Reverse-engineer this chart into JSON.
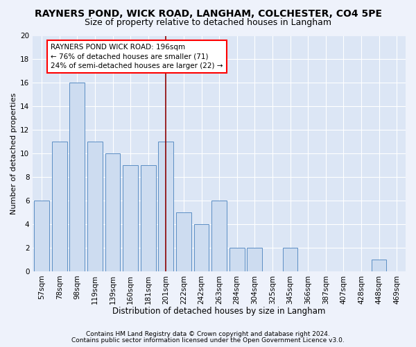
{
  "title": "RAYNERS POND, WICK ROAD, LANGHAM, COLCHESTER, CO4 5PE",
  "subtitle": "Size of property relative to detached houses in Langham",
  "xlabel": "Distribution of detached houses by size in Langham",
  "ylabel": "Number of detached properties",
  "categories": [
    "57sqm",
    "78sqm",
    "98sqm",
    "119sqm",
    "139sqm",
    "160sqm",
    "181sqm",
    "201sqm",
    "222sqm",
    "242sqm",
    "263sqm",
    "284sqm",
    "304sqm",
    "325sqm",
    "345sqm",
    "366sqm",
    "387sqm",
    "407sqm",
    "428sqm",
    "448sqm",
    "469sqm"
  ],
  "values": [
    6,
    11,
    16,
    11,
    10,
    9,
    9,
    11,
    5,
    4,
    6,
    2,
    2,
    0,
    2,
    0,
    0,
    0,
    0,
    1,
    0
  ],
  "bar_color": "#cddcf0",
  "bar_edge_color": "#5b8ec4",
  "red_line_x": 7,
  "ylim": [
    0,
    20
  ],
  "yticks": [
    0,
    2,
    4,
    6,
    8,
    10,
    12,
    14,
    16,
    18,
    20
  ],
  "annotation_text": "RAYNERS POND WICK ROAD: 196sqm\n← 76% of detached houses are smaller (71)\n24% of semi-detached houses are larger (22) →",
  "footnote1": "Contains HM Land Registry data © Crown copyright and database right 2024.",
  "footnote2": "Contains public sector information licensed under the Open Government Licence v3.0.",
  "fig_bg_color": "#eef2fb",
  "plot_bg_color": "#dce6f5",
  "grid_color": "#ffffff",
  "title_fontsize": 10,
  "subtitle_fontsize": 9,
  "xlabel_fontsize": 8.5,
  "ylabel_fontsize": 8,
  "tick_fontsize": 7.5,
  "annotation_fontsize": 7.5,
  "footnote_fontsize": 6.5
}
